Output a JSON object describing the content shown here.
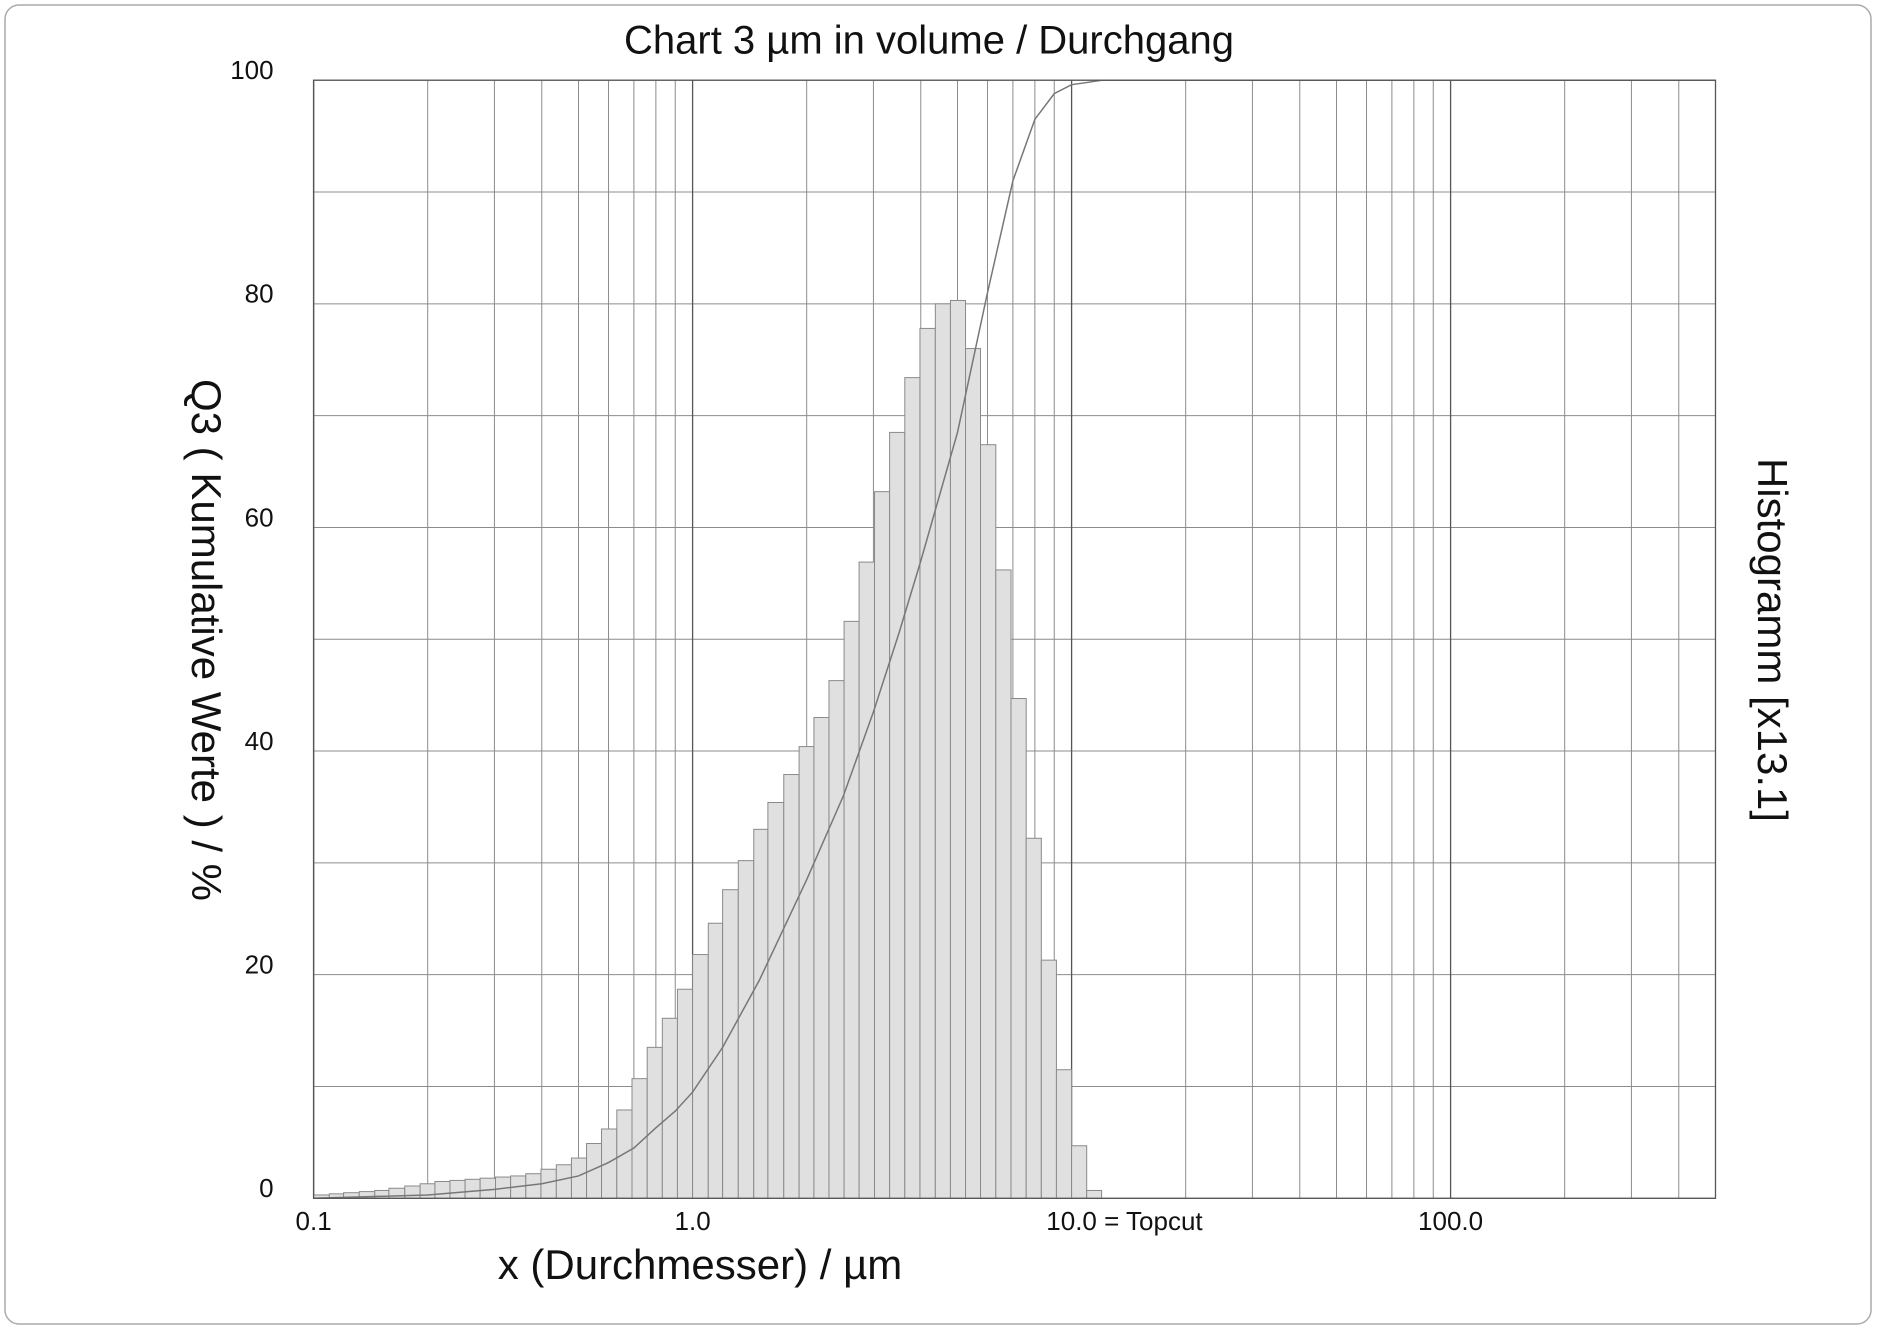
{
  "chart_data": {
    "type": "histogram",
    "title": "Chart 3 µm in volume / Durchgang",
    "xlabel": "x (Durchmesser) / µm",
    "ylabel": "Q3 ( Kumulative Werte ) / %",
    "y2label": "Histogramm [x13.1]",
    "xlog": true,
    "grid": true,
    "xlim": [
      0.1,
      500
    ],
    "ylim": [
      0,
      100
    ],
    "xticks": [
      0.1,
      {
        "value": 1,
        "label": "1.0"
      },
      {
        "value": 10,
        "label": "10.0 = Topcut"
      },
      {
        "value": 100,
        "label": "100.0"
      }
    ],
    "xminor_ticks": [
      0.2,
      0.3,
      0.4,
      0.5,
      0.6,
      0.7,
      0.8,
      0.9,
      2,
      3,
      4,
      5,
      6,
      7,
      8,
      9,
      20,
      30,
      40,
      50,
      60,
      70,
      80,
      90,
      200,
      300,
      400
    ],
    "yticks": [
      0,
      20,
      40,
      60,
      80,
      100
    ],
    "yminor_ticks": [
      10,
      30,
      50,
      70,
      90
    ],
    "bar_color": "#e0e0e0",
    "bar_edge_color": "#8a8a8a",
    "bins": [
      0.1,
      0.11,
      0.12,
      0.132,
      0.145,
      0.158,
      0.174,
      0.191,
      0.209,
      0.229,
      0.251,
      0.275,
      0.302,
      0.331,
      0.363,
      0.398,
      0.437,
      0.479,
      0.525,
      0.575,
      0.631,
      0.692,
      0.759,
      0.832,
      0.912,
      1.0,
      1.1,
      1.2,
      1.32,
      1.45,
      1.58,
      1.74,
      1.91,
      2.09,
      2.29,
      2.51,
      2.75,
      3.02,
      3.31,
      3.63,
      3.98,
      4.37,
      4.79,
      5.25,
      5.75,
      6.31,
      6.92,
      7.59,
      8.32,
      9.12,
      10.0,
      10.96,
      12.0
    ],
    "values": [
      0.3,
      0.4,
      0.5,
      0.6,
      0.7,
      0.9,
      1.1,
      1.3,
      1.5,
      1.6,
      1.7,
      1.8,
      1.9,
      2.0,
      2.2,
      2.6,
      3.0,
      3.6,
      4.9,
      6.2,
      7.9,
      10.7,
      13.5,
      16.1,
      18.7,
      21.8,
      24.6,
      27.6,
      30.2,
      33.0,
      35.4,
      37.9,
      40.4,
      43.0,
      46.3,
      51.6,
      56.9,
      63.2,
      68.5,
      73.4,
      77.8,
      80.0,
      80.3,
      76.0,
      67.4,
      56.2,
      44.7,
      32.2,
      21.3,
      11.5,
      4.7,
      0.7
    ],
    "curve": {
      "type": "line",
      "color": "#777777",
      "x": [
        0.1,
        0.2,
        0.3,
        0.4,
        0.5,
        0.6,
        0.7,
        0.8,
        0.9,
        1.0,
        1.2,
        1.5,
        2.0,
        2.5,
        3.0,
        3.5,
        4.0,
        5.0,
        6.0,
        7.0,
        8.0,
        9.0,
        10.0,
        11.0,
        12.0,
        500
      ],
      "values": [
        0,
        0.3,
        0.8,
        1.3,
        2.0,
        3.2,
        4.5,
        6.3,
        7.8,
        9.5,
        13.5,
        19.5,
        28.5,
        36,
        43.5,
        50.5,
        57,
        68.5,
        81,
        91,
        96.5,
        98.8,
        99.6,
        99.8,
        100,
        100
      ]
    }
  }
}
